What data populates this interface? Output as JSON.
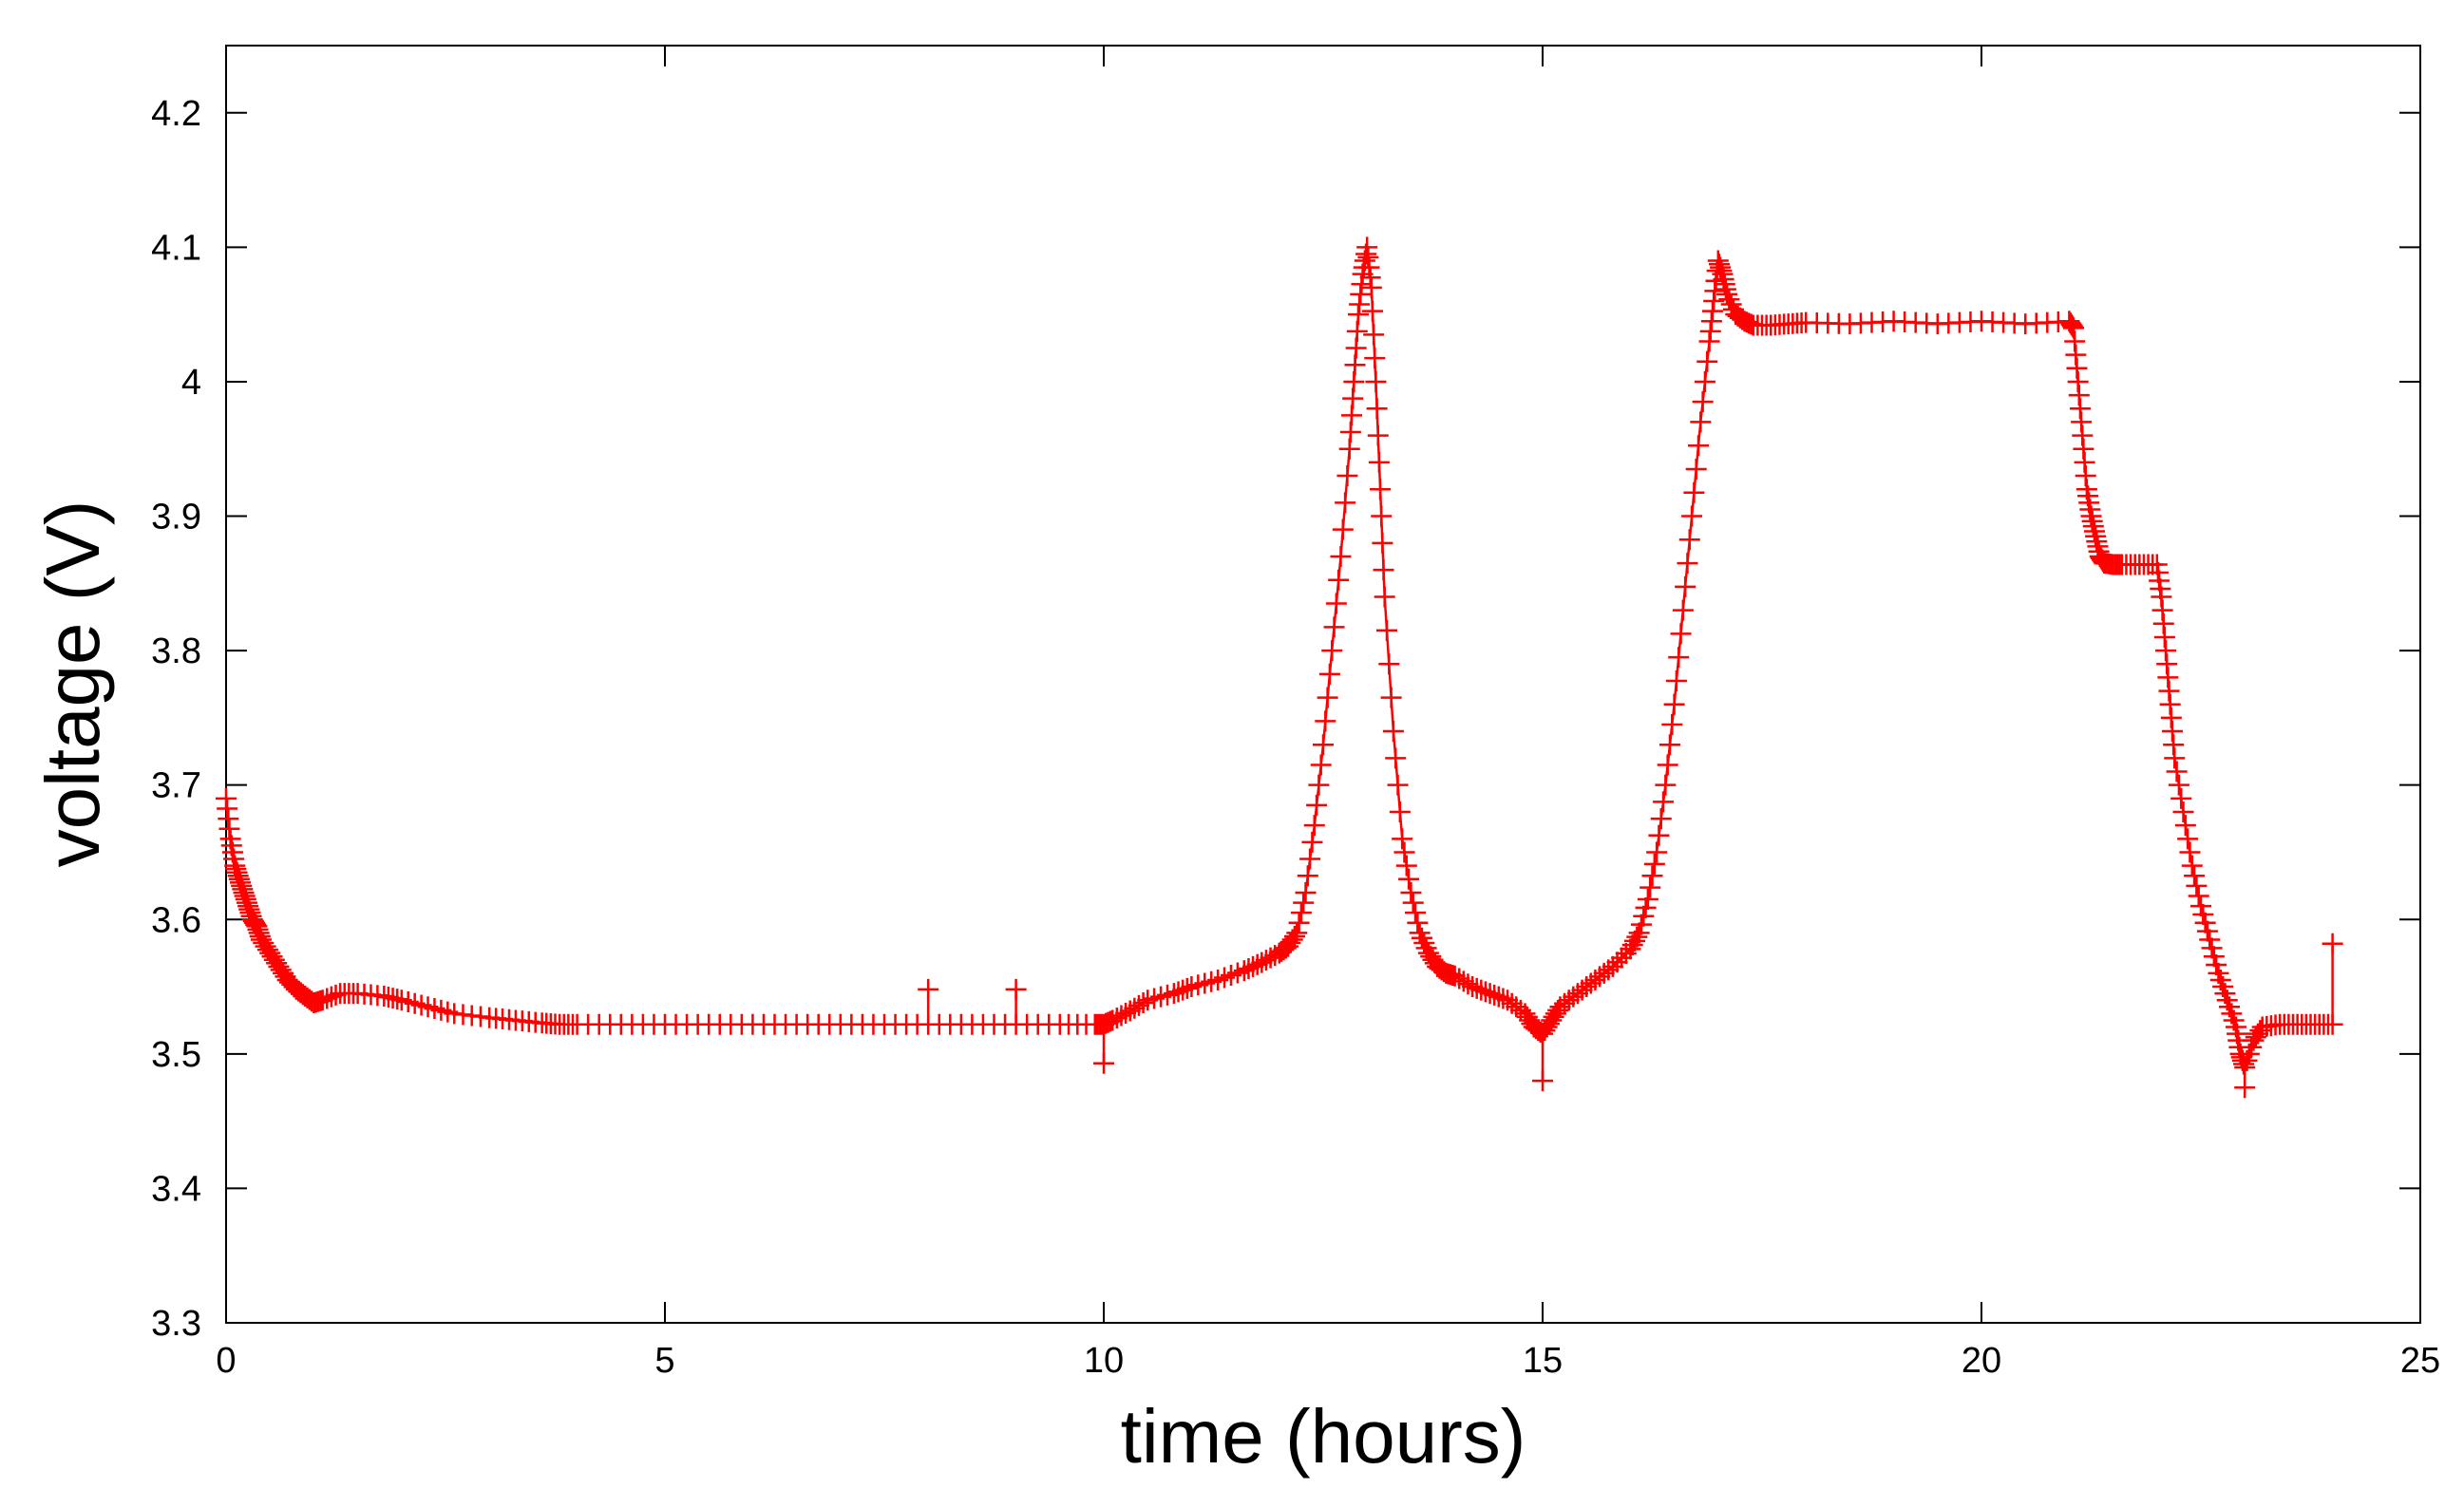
{
  "chart_data": {
    "type": "line",
    "title": "",
    "xlabel": "time (hours)",
    "ylabel": "voltage (V)",
    "xlim": [
      0,
      25
    ],
    "ylim": [
      3.3,
      4.25
    ],
    "x_ticks": [
      0,
      5,
      10,
      15,
      20,
      25
    ],
    "x_tick_labels": [
      "0",
      "5",
      "10",
      "15",
      "20",
      "25"
    ],
    "y_ticks": [
      3.3,
      3.4,
      3.5,
      3.6,
      3.7,
      3.8,
      3.9,
      4.0,
      4.1,
      4.2
    ],
    "y_tick_labels": [
      "3.3",
      "3.4",
      "3.5",
      "3.6",
      "3.7",
      "3.8",
      "3.9",
      "4",
      "4.1",
      "4.2"
    ],
    "grid": false,
    "legend": false,
    "color": "#ff0000",
    "marker": "plus",
    "series": [
      {
        "x": [
          0,
          0.05,
          0.1,
          0.15,
          0.2,
          0.25,
          0.3,
          0.35,
          0.4,
          0.5,
          0.6,
          0.7,
          0.8,
          0.9,
          1.0,
          1.1,
          1.3,
          1.5,
          1.8,
          2.0,
          2.3,
          2.6,
          3.0,
          3.3,
          3.6,
          3.8,
          4.0,
          4.5,
          5.0,
          5.5,
          6.0,
          6.5,
          7.0,
          7.5,
          8.0,
          8.5,
          9.0,
          9.5,
          9.9,
          10.0,
          10.1,
          10.3,
          10.5,
          10.8,
          11.0,
          11.3,
          11.6,
          11.8,
          12.0,
          12.1,
          12.2,
          12.3,
          12.4,
          12.5,
          12.6,
          12.7,
          12.8,
          12.85,
          12.9,
          12.95,
          13.0,
          13.05,
          13.1,
          13.15,
          13.2,
          13.3,
          13.4,
          13.5,
          13.6,
          13.7,
          13.8,
          13.9,
          14.0,
          14.2,
          14.4,
          14.6,
          14.8,
          14.9,
          15.0,
          15.1,
          15.2,
          15.4,
          15.6,
          15.8,
          16.0,
          16.1,
          16.2,
          16.3,
          16.4,
          16.5,
          16.6,
          16.7,
          16.8,
          16.9,
          16.95,
          17.0,
          17.05,
          17.1,
          17.2,
          17.3,
          17.4,
          17.6,
          17.8,
          18.0,
          18.5,
          19.0,
          19.5,
          20.0,
          20.5,
          21.0,
          21.05,
          21.1,
          21.15,
          21.2,
          21.25,
          21.3,
          21.35,
          21.4,
          21.5,
          21.6,
          21.8,
          22.0,
          22.05,
          22.1,
          22.15,
          22.2,
          22.3,
          22.4,
          22.5,
          22.6,
          22.7,
          22.8,
          22.9,
          22.95,
          23.0,
          23.1,
          23.2,
          23.4,
          23.6,
          23.8,
          24.0
        ],
        "y": [
          3.69,
          3.66,
          3.64,
          3.63,
          3.62,
          3.61,
          3.6,
          3.595,
          3.585,
          3.575,
          3.565,
          3.555,
          3.548,
          3.543,
          3.538,
          3.54,
          3.545,
          3.545,
          3.543,
          3.54,
          3.535,
          3.53,
          3.527,
          3.525,
          3.523,
          3.522,
          3.522,
          3.522,
          3.522,
          3.522,
          3.522,
          3.522,
          3.522,
          3.522,
          3.522,
          3.522,
          3.522,
          3.522,
          3.522,
          3.522,
          3.525,
          3.532,
          3.54,
          3.545,
          3.55,
          3.555,
          3.562,
          3.568,
          3.575,
          3.58,
          3.59,
          3.62,
          3.67,
          3.73,
          3.8,
          3.87,
          3.95,
          4.0,
          4.05,
          4.08,
          4.1,
          4.07,
          4.0,
          3.92,
          3.84,
          3.74,
          3.66,
          3.62,
          3.59,
          3.575,
          3.565,
          3.56,
          3.558,
          3.55,
          3.545,
          3.54,
          3.53,
          3.52,
          3.515,
          3.525,
          3.535,
          3.545,
          3.555,
          3.565,
          3.578,
          3.59,
          3.615,
          3.65,
          3.7,
          3.76,
          3.83,
          3.9,
          3.97,
          4.03,
          4.06,
          4.09,
          4.08,
          4.065,
          4.05,
          4.045,
          4.042,
          4.042,
          4.043,
          4.044,
          4.043,
          4.045,
          4.043,
          4.045,
          4.043,
          4.045,
          4.04,
          4.0,
          3.96,
          3.92,
          3.9,
          3.885,
          3.87,
          3.865,
          3.864,
          3.864,
          3.864,
          3.864,
          3.84,
          3.8,
          3.76,
          3.72,
          3.68,
          3.64,
          3.61,
          3.585,
          3.56,
          3.54,
          3.52,
          3.5,
          3.49,
          3.51,
          3.52,
          3.522,
          3.522,
          3.522,
          3.522
        ]
      }
    ],
    "outlier_points": [
      [
        8.0,
        3.548
      ],
      [
        9.0,
        3.548
      ],
      [
        10.0,
        3.493
      ],
      [
        15.0,
        3.48
      ],
      [
        23.0,
        3.475
      ],
      [
        24.0,
        3.582
      ]
    ]
  }
}
